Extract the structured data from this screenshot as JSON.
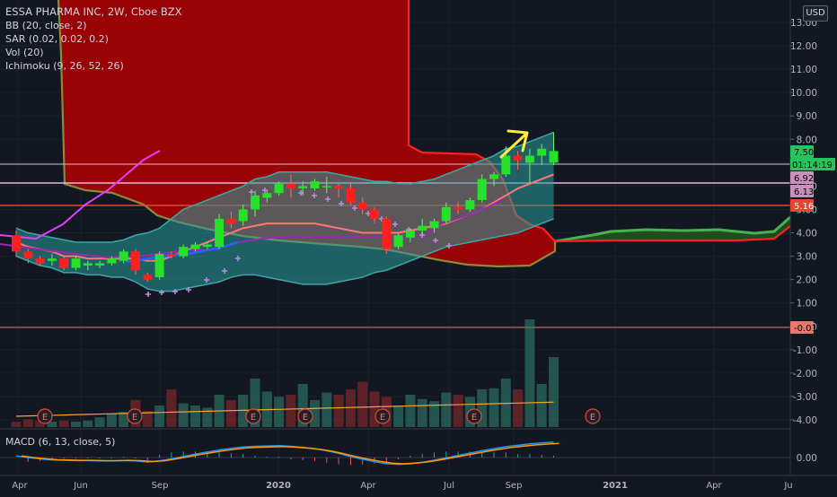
{
  "header": {
    "title": "ESSA PHARMA INC, 2W, Cboe BZX",
    "indicators": [
      "BB (20, close, 2)",
      "SAR (0.02, 0.02, 0.2)",
      "Vol (20)",
      "Ichimoku (9, 26, 52, 26)"
    ],
    "currency": "USD"
  },
  "macd_label": "MACD (6, 13, close, 5)",
  "price_tags": [
    {
      "value": "7.50",
      "bg": "#22c55e",
      "fg": "#000000"
    },
    {
      "value": "01:14:19",
      "bg": "#22c55e",
      "fg": "#000000"
    },
    {
      "value": "6.92",
      "bg": "#c98fbd",
      "fg": "#000000"
    },
    {
      "value": "6.13",
      "bg": "#c98fbd",
      "fg": "#000000"
    },
    {
      "value": "5.16",
      "bg": "#e8452e",
      "fg": "#ffffff"
    },
    {
      "value": "-0.01",
      "bg": "#e8786b",
      "fg": "#000000"
    }
  ],
  "earnings_marker": "E",
  "chart_data": {
    "type": "candlestick",
    "title": "ESSA PHARMA INC, 2W, Cboe BZX",
    "y_axis": {
      "ticks": [
        "13.00",
        "12.00",
        "11.00",
        "10.00",
        "9.00",
        "8.00",
        "7.00",
        "6.00",
        "5.00",
        "4.00",
        "3.00",
        "2.00",
        "1.00",
        "0.00",
        "-1.00",
        "-2.00",
        "-3.00",
        "-4.00"
      ],
      "range": [
        -4.5,
        13.5
      ]
    },
    "x_axis": {
      "ticks": [
        "Apr",
        "Jun",
        "Sep",
        "2020",
        "Apr",
        "Jul",
        "Sep",
        "2021",
        "Apr",
        "Ju"
      ]
    },
    "macd_axis": {
      "ticks": [
        "0.00"
      ]
    },
    "candles": [
      {
        "o": 3.9,
        "h": 4.1,
        "l": 3.0,
        "c": 3.2
      },
      {
        "o": 3.2,
        "h": 3.3,
        "l": 2.7,
        "c": 2.9
      },
      {
        "o": 2.9,
        "h": 3.0,
        "l": 2.6,
        "c": 2.7
      },
      {
        "o": 2.8,
        "h": 3.1,
        "l": 2.6,
        "c": 2.9
      },
      {
        "o": 2.9,
        "h": 3.0,
        "l": 2.4,
        "c": 2.5
      },
      {
        "o": 2.5,
        "h": 3.0,
        "l": 2.4,
        "c": 2.9
      },
      {
        "o": 2.6,
        "h": 2.8,
        "l": 2.4,
        "c": 2.7
      },
      {
        "o": 2.6,
        "h": 2.8,
        "l": 2.5,
        "c": 2.7
      },
      {
        "o": 2.7,
        "h": 3.0,
        "l": 2.6,
        "c": 2.9
      },
      {
        "o": 2.8,
        "h": 3.3,
        "l": 2.7,
        "c": 3.2
      },
      {
        "o": 3.2,
        "h": 3.3,
        "l": 2.2,
        "c": 2.4
      },
      {
        "o": 2.2,
        "h": 2.3,
        "l": 1.9,
        "c": 2.0
      },
      {
        "o": 2.1,
        "h": 3.2,
        "l": 2.0,
        "c": 3.1
      },
      {
        "o": 3.1,
        "h": 3.2,
        "l": 2.9,
        "c": 3.0
      },
      {
        "o": 3.0,
        "h": 3.5,
        "l": 2.9,
        "c": 3.4
      },
      {
        "o": 3.3,
        "h": 3.6,
        "l": 3.2,
        "c": 3.5
      },
      {
        "o": 3.4,
        "h": 3.6,
        "l": 3.3,
        "c": 3.5
      },
      {
        "o": 3.4,
        "h": 4.8,
        "l": 3.3,
        "c": 4.6
      },
      {
        "o": 4.6,
        "h": 4.9,
        "l": 4.2,
        "c": 4.4
      },
      {
        "o": 4.5,
        "h": 5.2,
        "l": 4.3,
        "c": 5.0
      },
      {
        "o": 5.0,
        "h": 5.8,
        "l": 4.7,
        "c": 5.6
      },
      {
        "o": 5.5,
        "h": 5.8,
        "l": 5.3,
        "c": 5.7
      },
      {
        "o": 5.7,
        "h": 6.2,
        "l": 5.6,
        "c": 6.1
      },
      {
        "o": 6.1,
        "h": 6.5,
        "l": 5.5,
        "c": 5.9
      },
      {
        "o": 5.9,
        "h": 6.2,
        "l": 5.6,
        "c": 6.0
      },
      {
        "o": 5.9,
        "h": 6.3,
        "l": 5.8,
        "c": 6.2
      },
      {
        "o": 6.0,
        "h": 6.4,
        "l": 5.7,
        "c": 6.0
      },
      {
        "o": 6.0,
        "h": 6.1,
        "l": 5.5,
        "c": 5.9
      },
      {
        "o": 5.9,
        "h": 6.1,
        "l": 5.2,
        "c": 5.3
      },
      {
        "o": 5.3,
        "h": 5.5,
        "l": 4.8,
        "c": 5.0
      },
      {
        "o": 5.0,
        "h": 5.1,
        "l": 4.4,
        "c": 4.6
      },
      {
        "o": 4.6,
        "h": 4.7,
        "l": 3.1,
        "c": 3.3
      },
      {
        "o": 3.4,
        "h": 4.0,
        "l": 3.3,
        "c": 3.9
      },
      {
        "o": 3.8,
        "h": 4.2,
        "l": 3.6,
        "c": 4.1
      },
      {
        "o": 4.1,
        "h": 4.6,
        "l": 3.9,
        "c": 4.3
      },
      {
        "o": 4.2,
        "h": 4.6,
        "l": 4.0,
        "c": 4.5
      },
      {
        "o": 4.5,
        "h": 5.3,
        "l": 4.4,
        "c": 5.1
      },
      {
        "o": 5.1,
        "h": 5.3,
        "l": 4.8,
        "c": 5.0
      },
      {
        "o": 5.0,
        "h": 5.5,
        "l": 4.9,
        "c": 5.4
      },
      {
        "o": 5.4,
        "h": 6.5,
        "l": 5.3,
        "c": 6.3
      },
      {
        "o": 6.3,
        "h": 6.6,
        "l": 6.0,
        "c": 6.5
      },
      {
        "o": 6.5,
        "h": 7.7,
        "l": 6.4,
        "c": 7.3
      },
      {
        "o": 7.3,
        "h": 7.5,
        "l": 6.7,
        "c": 7.1
      },
      {
        "o": 7.0,
        "h": 7.6,
        "l": 6.1,
        "c": 7.3
      },
      {
        "o": 7.3,
        "h": 7.8,
        "l": 6.9,
        "c": 7.6
      },
      {
        "o": 7.0,
        "h": 8.3,
        "l": 6.9,
        "c": 7.5
      }
    ],
    "volume": [
      0.05,
      0.07,
      0.06,
      0.05,
      0.06,
      0.05,
      0.06,
      0.09,
      0.12,
      0.14,
      0.25,
      0.15,
      0.2,
      0.35,
      0.22,
      0.2,
      0.18,
      0.3,
      0.25,
      0.3,
      0.45,
      0.33,
      0.28,
      0.3,
      0.4,
      0.25,
      0.32,
      0.3,
      0.35,
      0.42,
      0.33,
      0.28,
      0.2,
      0.3,
      0.26,
      0.24,
      0.32,
      0.3,
      0.28,
      0.35,
      0.36,
      0.45,
      0.35,
      1.0,
      0.4,
      0.65
    ],
    "bb_upper": [
      4.2,
      4.0,
      3.9,
      3.8,
      3.7,
      3.6,
      3.6,
      3.6,
      3.6,
      3.7,
      3.9,
      4.0,
      4.2,
      4.6,
      5.0,
      5.2,
      5.4,
      5.6,
      5.8,
      6.0,
      6.3,
      6.4,
      6.6,
      6.6,
      6.6,
      6.6,
      6.6,
      6.5,
      6.4,
      6.3,
      6.2,
      6.2,
      6.1,
      6.1,
      6.2,
      6.3,
      6.5,
      6.7,
      6.9,
      7.1,
      7.3,
      7.6,
      7.7,
      7.9,
      8.1,
      8.3
    ],
    "bb_lower": [
      3.0,
      2.8,
      2.6,
      2.5,
      2.3,
      2.3,
      2.2,
      2.2,
      2.1,
      2.1,
      1.9,
      1.6,
      1.5,
      1.5,
      1.6,
      1.7,
      1.8,
      1.9,
      2.1,
      2.2,
      2.2,
      2.1,
      2.0,
      1.9,
      1.8,
      1.8,
      1.8,
      1.9,
      2.0,
      2.1,
      2.3,
      2.4,
      2.6,
      2.8,
      3.0,
      3.2,
      3.4,
      3.5,
      3.6,
      3.7,
      3.8,
      3.9,
      4.0,
      4.2,
      4.4,
      4.6
    ],
    "bb_basis": [
      3.6,
      3.4,
      3.3,
      3.2,
      3.0,
      3.0,
      2.9,
      2.9,
      2.9,
      2.9,
      2.9,
      2.8,
      2.8,
      3.0,
      3.2,
      3.4,
      3.6,
      3.8,
      4.0,
      4.2,
      4.3,
      4.4,
      4.4,
      4.4,
      4.4,
      4.4,
      4.3,
      4.2,
      4.1,
      4.0,
      4.0,
      4.0,
      4.0,
      4.1,
      4.2,
      4.3,
      4.4,
      4.6,
      4.8,
      5.0,
      5.3,
      5.6,
      5.9,
      6.1,
      6.3,
      6.5
    ],
    "macd": [
      0.05,
      0.0,
      -0.04,
      -0.07,
      -0.08,
      -0.09,
      -0.09,
      -0.1,
      -0.1,
      -0.09,
      -0.1,
      -0.13,
      -0.1,
      -0.04,
      0.03,
      0.1,
      0.16,
      0.22,
      0.27,
      0.31,
      0.33,
      0.34,
      0.35,
      0.33,
      0.3,
      0.26,
      0.2,
      0.12,
      0.03,
      -0.05,
      -0.12,
      -0.18,
      -0.2,
      -0.18,
      -0.14,
      -0.08,
      -0.01,
      0.06,
      0.13,
      0.2,
      0.26,
      0.32,
      0.36,
      0.4,
      0.43,
      0.45
    ]
  }
}
